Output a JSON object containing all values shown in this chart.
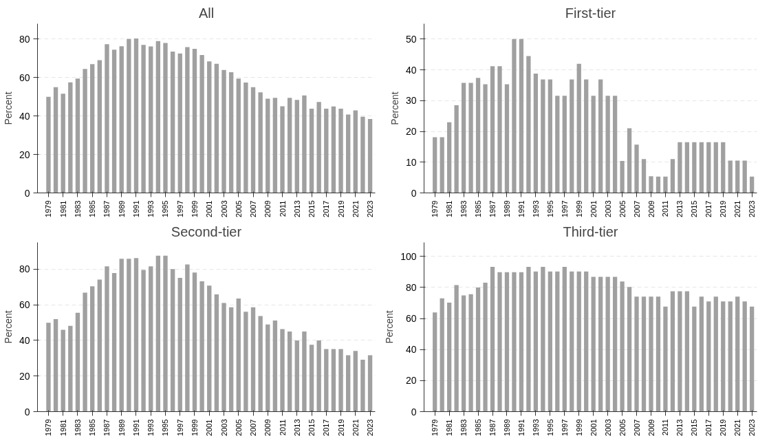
{
  "chart_data": [
    {
      "type": "bar",
      "title": "All",
      "ylabel": "Percent",
      "categories": [
        "1979",
        null,
        "1981",
        null,
        "1983",
        null,
        "1985",
        null,
        "1987",
        null,
        "1989",
        null,
        "1991",
        null,
        "1993",
        null,
        "1995",
        null,
        "1997",
        null,
        "1999",
        null,
        "2001",
        null,
        "2003",
        null,
        "2005",
        null,
        "2007",
        null,
        "2009",
        null,
        "2011",
        null,
        "2013",
        null,
        "2015",
        null,
        "2017",
        null,
        "2019",
        null,
        "2021",
        null,
        "2023"
      ],
      "color": "#a0a0a0",
      "ylim": [
        0,
        88
      ],
      "yticks": [
        0,
        20,
        40,
        60,
        80
      ],
      "grid": "y",
      "values": [
        50,
        55,
        51.6,
        57.5,
        59.5,
        64.5,
        67,
        69,
        77.4,
        74.5,
        76.3,
        80,
        80.3,
        77,
        76.2,
        79,
        78,
        73.5,
        72.5,
        75.8,
        74.9,
        71.7,
        68.4,
        67.2,
        63.9,
        62.8,
        59.5,
        57.4,
        55,
        52.3,
        49,
        49.5,
        45.1,
        49.5,
        48.4,
        50.7,
        43.8,
        47.3,
        43.8,
        45,
        43.8,
        40.8,
        42.9,
        39.6,
        38.5
      ]
    },
    {
      "type": "bar",
      "title": "First-tier",
      "ylabel": "Percent",
      "categories": [
        "1979",
        null,
        "1981",
        null,
        "1983",
        null,
        "1985",
        null,
        "1987",
        null,
        "1989",
        null,
        "1991",
        null,
        "1993",
        null,
        "1995",
        null,
        "1997",
        null,
        "1999",
        null,
        "2001",
        null,
        "2003",
        null,
        "2005",
        null,
        "2007",
        null,
        "2009",
        null,
        "2011",
        null,
        "2013",
        null,
        "2015",
        null,
        "2017",
        null,
        "2019",
        null,
        "2021",
        null,
        "2023"
      ],
      "color": "#a0a0a0",
      "ylim": [
        0,
        55
      ],
      "yticks": [
        0,
        10,
        20,
        30,
        40,
        50
      ],
      "grid": "y",
      "values": [
        18.1,
        18.1,
        23,
        28.5,
        35.8,
        35.8,
        37.4,
        35.3,
        41.2,
        41.2,
        35.3,
        50,
        50,
        44.5,
        38.8,
        36.9,
        36.9,
        31.6,
        31.6,
        36.9,
        42,
        36.9,
        31.6,
        36.9,
        31.6,
        31.6,
        10.4,
        21,
        15.7,
        11,
        5.4,
        5.3,
        5.3,
        11,
        16.5,
        16.5,
        16.5,
        16.5,
        16.5,
        16.5,
        16.5,
        10.5,
        10.5,
        10.5,
        5.3
      ]
    },
    {
      "type": "bar",
      "title": "Second-tier",
      "ylabel": "Percent",
      "categories": [
        "1979",
        null,
        "1981",
        null,
        "1983",
        null,
        "1985",
        null,
        "1987",
        null,
        "1989",
        null,
        "1991",
        null,
        "1993",
        null,
        "1995",
        null,
        "1997",
        null,
        "1999",
        null,
        "2001",
        null,
        "2003",
        null,
        "2005",
        null,
        "2007",
        null,
        "2009",
        null,
        "2011",
        null,
        "2013",
        null,
        "2015",
        null,
        "2017",
        null,
        "2019",
        null,
        "2021",
        null,
        "2023"
      ],
      "color": "#a0a0a0",
      "ylim": [
        0,
        95
      ],
      "yticks": [
        0,
        20,
        40,
        60,
        80
      ],
      "grid": "y",
      "values": [
        49.9,
        51.9,
        46,
        48.2,
        55.5,
        66.8,
        70.4,
        74.1,
        81.6,
        77.8,
        85.8,
        85.8,
        86.2,
        79.6,
        81.6,
        87.6,
        87.6,
        80,
        75.1,
        82.6,
        78.1,
        73.2,
        70.8,
        65.8,
        61,
        58.6,
        63.5,
        56.1,
        58.6,
        53.7,
        48.9,
        51.2,
        46.3,
        45,
        40,
        45,
        37.6,
        40,
        35.1,
        35.1,
        35.1,
        31.7,
        34.1,
        29.2,
        31.7
      ]
    },
    {
      "type": "bar",
      "title": "Third-tier",
      "ylabel": "Percent",
      "categories": [
        "1979",
        null,
        "1981",
        null,
        "1983",
        null,
        "1985",
        null,
        "1987",
        null,
        "1989",
        null,
        "1991",
        null,
        "1993",
        null,
        "1995",
        null,
        "1997",
        null,
        "1999",
        null,
        "2001",
        null,
        "2003",
        null,
        "2005",
        null,
        "2007",
        null,
        "2009",
        null,
        "2011",
        null,
        "2013",
        null,
        "2015",
        null,
        "2017",
        null,
        "2019",
        null,
        "2021",
        null,
        "2023"
      ],
      "color": "#a0a0a0",
      "ylim": [
        0,
        109
      ],
      "yticks": [
        0,
        20,
        40,
        60,
        80,
        100
      ],
      "grid": "y",
      "values": [
        63.9,
        73,
        70.2,
        81.5,
        74.9,
        75.7,
        80,
        83.1,
        93.3,
        89.8,
        89.8,
        89.8,
        89.8,
        93.3,
        90.3,
        93.3,
        90.3,
        90.3,
        93.3,
        90.3,
        90.3,
        90.3,
        86.9,
        86.9,
        86.9,
        86.9,
        83.8,
        80.3,
        74.1,
        74.1,
        74.1,
        74.1,
        67.7,
        77.5,
        77.5,
        77.5,
        67.7,
        74.1,
        71,
        74.1,
        71,
        71,
        74.1,
        71,
        67.7
      ]
    }
  ]
}
